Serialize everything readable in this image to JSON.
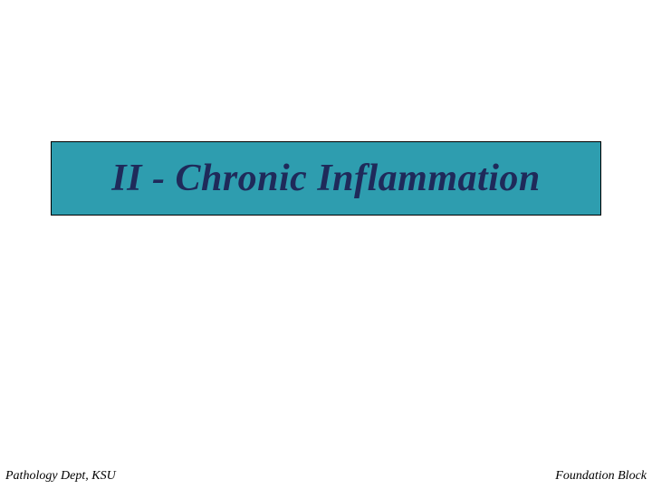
{
  "slide": {
    "title": "II - Chronic Inflammation",
    "title_fontsize": 42,
    "title_color": "#1f2a5a",
    "banner_background": "#2e9daf",
    "banner_border": "#000000",
    "footer_left": "Pathology Dept, KSU",
    "footer_right": "Foundation Block",
    "footer_fontsize": 14,
    "footer_color": "#000000",
    "background_color": "#ffffff"
  }
}
